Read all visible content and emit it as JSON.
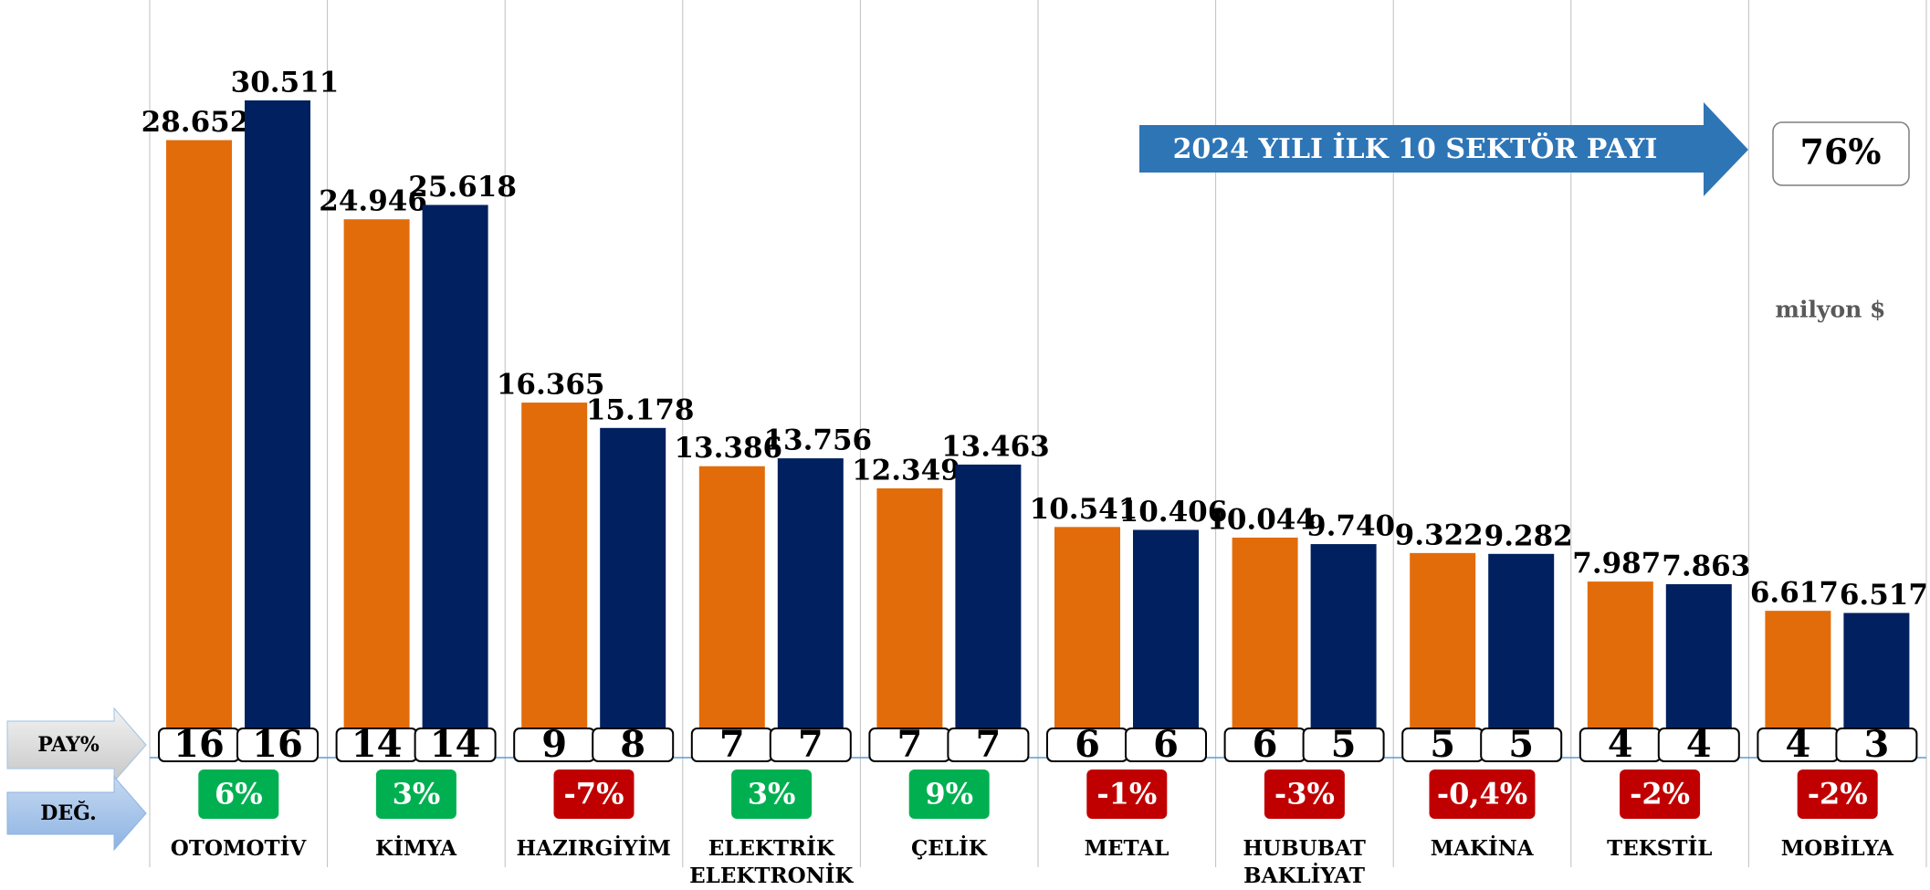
{
  "chart_data": {
    "type": "bar",
    "categories": [
      "OTOMOTİV",
      "KİMYA",
      "HAZIRGİYİM",
      "ELEKTRİK\nELEKTRONİK",
      "ÇELİK",
      "METAL",
      "HUBUBAT\nBAKLİYAT",
      "MAKİNA",
      "TEKSTİL",
      "MOBİLYA"
    ],
    "series": [
      {
        "color": "#e36c0a",
        "values": [
          28652,
          24946,
          16365,
          13386,
          12349,
          10541,
          10044,
          9322,
          7987,
          6617
        ],
        "value_labels": [
          "28.652",
          "24.946",
          "16.365",
          "13.386",
          "12.349",
          "10.541",
          "10.044",
          "9.322",
          "7.987",
          "6.617"
        ],
        "share_values": [
          16,
          14,
          9,
          7,
          7,
          6,
          6,
          5,
          4,
          4
        ]
      },
      {
        "color": "#002060",
        "values": [
          30511,
          25618,
          15178,
          13756,
          13463,
          10406,
          9740,
          9282,
          7863,
          6517
        ],
        "value_labels": [
          "30.511",
          "25.618",
          "15.178",
          "13.756",
          "13.463",
          "10.406",
          "9.740",
          "9.282",
          "7.863",
          "6.517"
        ],
        "share_values": [
          16,
          14,
          8,
          7,
          7,
          6,
          5,
          5,
          4,
          3
        ]
      }
    ],
    "changes": [
      6,
      3,
      -7,
      3,
      9,
      -1,
      -3,
      -0.4,
      -2,
      -2
    ],
    "change_labels": [
      "6%",
      "3%",
      "-7%",
      "3%",
      "9%",
      "-1%",
      "-3%",
      "-0,4%",
      "-2%",
      "-2%"
    ],
    "positive_color": "#00b050",
    "negative_color": "#c00000",
    "share_label": "PAY%",
    "change_label": "DEĞ.",
    "annotation": "2024 YILI İLK 10 SEKTÖR PAYI",
    "total_share": 76,
    "total_share_label": "76%",
    "unit": "milyon $"
  }
}
